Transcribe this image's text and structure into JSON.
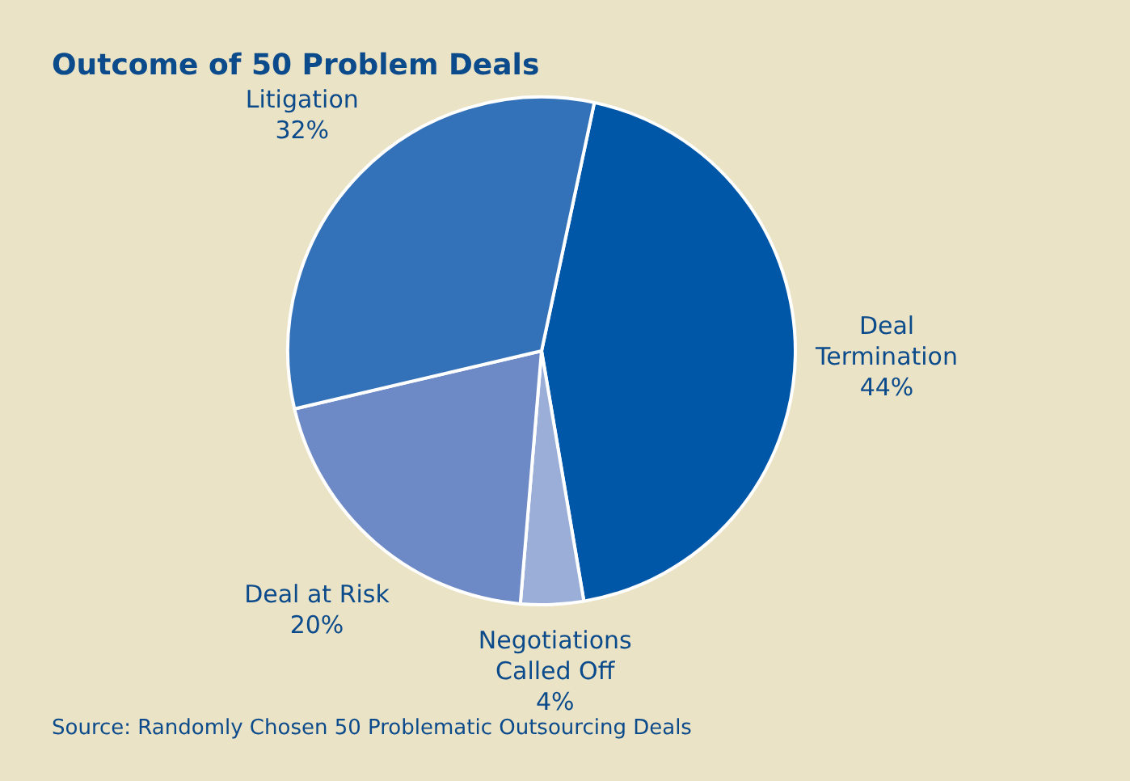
{
  "chart_data": {
    "type": "pie",
    "title": "Outcome of 50 Problem Deals",
    "categories": [
      "Deal Termination",
      "Negotiations Called Off",
      "Deal at Risk",
      "Litigation"
    ],
    "values": [
      44,
      4,
      20,
      32
    ],
    "value_labels": [
      "44%",
      "4%",
      "20%",
      "32%"
    ],
    "colors": [
      "#0057a8",
      "#9aaed8",
      "#6d8ac6",
      "#3372b9"
    ],
    "legend": false,
    "annotations": [
      "Source: Randomly Chosen 50 Problematic Outsourcing Deals"
    ]
  }
}
